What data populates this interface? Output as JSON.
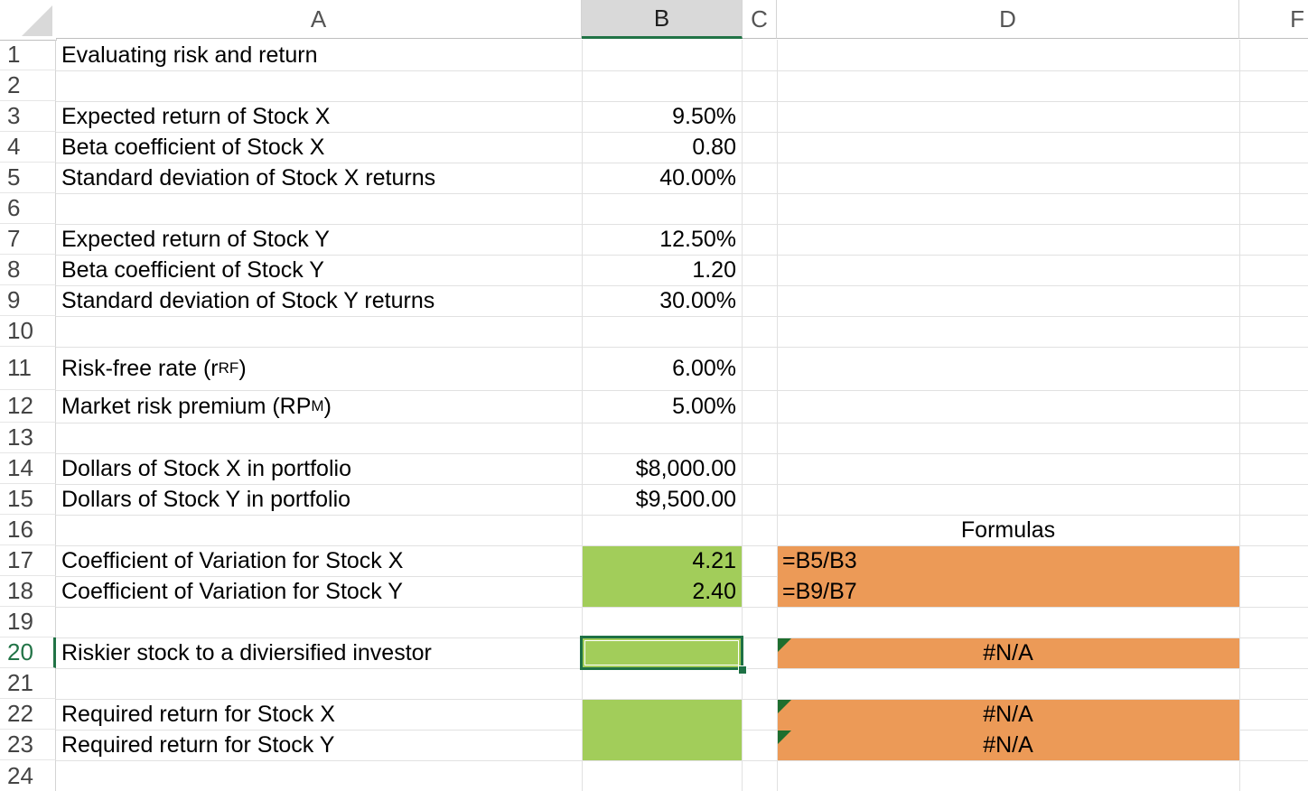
{
  "columns": [
    "A",
    "B",
    "C",
    "D",
    "F"
  ],
  "selected_column": "B",
  "rows": [
    "1",
    "2",
    "3",
    "4",
    "5",
    "6",
    "7",
    "8",
    "9",
    "10",
    "11",
    "12",
    "13",
    "14",
    "15",
    "16",
    "17",
    "18",
    "19",
    "20",
    "21",
    "22",
    "23",
    "24"
  ],
  "selected_row": "20",
  "cells": {
    "A1": "Evaluating risk and return",
    "A3": "Expected return of Stock X",
    "A4": "Beta coefficient of Stock X",
    "A5": "Standard deviation of Stock X returns",
    "A7": "Expected return of Stock Y",
    "A8": "Beta coefficient of Stock Y",
    "A9": "Standard deviation of Stock Y returns",
    "A11": {
      "main": "Risk-free rate (r",
      "sub": "RF",
      "end": ")"
    },
    "A12": {
      "main": "Market risk premium (RP",
      "sub": "M",
      "end": ")"
    },
    "A14": "Dollars of Stock X in portfolio",
    "A15": "Dollars of Stock Y in portfolio",
    "A17": "Coefficient of Variation for Stock X",
    "A18": "Coefficient of Variation for Stock Y",
    "A20": "Riskier stock to a diviersified investor",
    "A22": "Required return for Stock X",
    "A23": "Required return for Stock Y",
    "B3": "9.50%",
    "B4": "0.80",
    "B5": "40.00%",
    "B7": "12.50%",
    "B8": "1.20",
    "B9": "30.00%",
    "B11": "6.00%",
    "B12": "5.00%",
    "B14": "$8,000.00",
    "B15": "$9,500.00",
    "B17": "4.21",
    "B18": "2.40",
    "D16": "Formulas",
    "D17": "=B5/B3",
    "D18": "=B9/B7",
    "D20": "#N/A",
    "D22": "#N/A",
    "D23": "#N/A"
  },
  "colors": {
    "input_green": "#a2cd5a",
    "formula_orange": "#ec9a57",
    "selection_green": "#217346"
  }
}
